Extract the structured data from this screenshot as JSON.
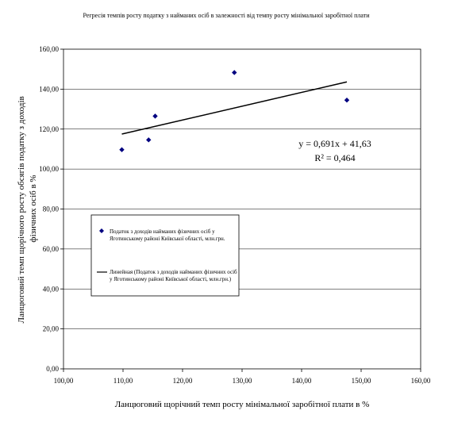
{
  "chart_data": {
    "type": "scatter",
    "title": "Регресія темпів росту податку з найманих осіб в залежності від темпу росту мінімальної заробітної плати",
    "xlabel": "Ланцюговий щорічний темп росту мінімальної заробітної плати в %",
    "ylabel": "Ланцюговий темп щорічного росту обсягів податку з доходів фізичних осіб в %",
    "xlim": [
      100,
      160
    ],
    "ylim": [
      0,
      160
    ],
    "x_ticks": [
      "100,00",
      "110,00",
      "120,00",
      "130,00",
      "140,00",
      "150,00",
      "160,00"
    ],
    "y_ticks": [
      "0,00",
      "20,00",
      "40,00",
      "60,00",
      "80,00",
      "100,00",
      "120,00",
      "140,00",
      "160,00"
    ],
    "grid": "horizontal",
    "series": [
      {
        "name": "Податок з доходів найманих фізичних осіб у Яготинському районі Київської області, млн.грн.",
        "marker": "diamond",
        "color": "#000080",
        "points": [
          {
            "x": 109.8,
            "y": 109.7
          },
          {
            "x": 114.3,
            "y": 114.6
          },
          {
            "x": 115.4,
            "y": 126.5
          },
          {
            "x": 128.7,
            "y": 148.3
          },
          {
            "x": 147.6,
            "y": 134.5
          }
        ]
      },
      {
        "name": "Линейная (Податок з доходів найманих фізичних осіб у Яготинському районі Київської області, млн.грн.)",
        "kind": "trendline",
        "color": "#000000",
        "slope": 0.691,
        "intercept": 41.63,
        "x_range": [
          109.8,
          147.6
        ]
      }
    ],
    "equation": "y = 0,691x + 41,63",
    "r_squared": "R² = 0,464",
    "legend_placement": "middle-left"
  }
}
